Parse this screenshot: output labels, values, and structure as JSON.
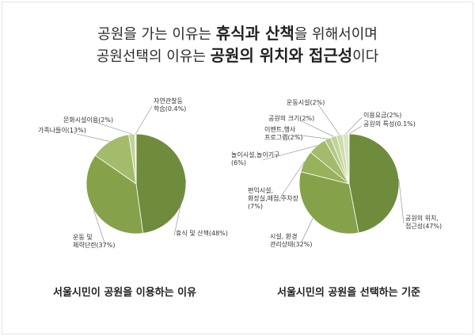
{
  "headline": {
    "line1_pre": "공원을 가는 이유는 ",
    "line1_bold1": "휴식과 산책",
    "line1_post": "을 위해서이며",
    "line2_pre": "공원선택의 이유는 ",
    "line2_bold": "공원의 위치와 접근성",
    "line2_post": "이다"
  },
  "colors": {
    "dark_olive": "#6e8c3c",
    "mid_olive": "#85a24a",
    "light_olive": "#a3bb6b",
    "pale_olive": "#c2d39a",
    "very_pale": "#dbe5c3",
    "lightest": "#ecf1e0"
  },
  "chart_data": [
    {
      "type": "pie",
      "title": "서울시민이 공원을 이용하는 이유",
      "slices": [
        {
          "label": "휴식 및 산책(48%)",
          "value": 48,
          "color": "#6e8c3c"
        },
        {
          "label": "운동 및\n체력단련(37%)",
          "value": 37,
          "color": "#85a24a"
        },
        {
          "label": "가족나들이(13%)",
          "value": 13,
          "color": "#a3bb6b"
        },
        {
          "label": "문화시설이용(2%)",
          "value": 2,
          "color": "#c2d39a"
        },
        {
          "label": "자연관찰등\n학습(0.4%)",
          "value": 0.4,
          "color": "#dbe5c3"
        }
      ]
    },
    {
      "type": "pie",
      "title": "서울시민의 공원을 선택하는 기준",
      "slices": [
        {
          "label": "공원의 위치,\n접근성(47%)",
          "value": 47,
          "color": "#6e8c3c"
        },
        {
          "label": "시설, 환경\n관리상태(32%)",
          "value": 32,
          "color": "#85a24a"
        },
        {
          "label": "편익시설,\n화장실,매점,주차장\n(7%)",
          "value": 7,
          "color": "#98b25c"
        },
        {
          "label": "놀이시설,놀이기구\n(6%)",
          "value": 6,
          "color": "#a3bb6b"
        },
        {
          "label": "이벤트,행사\n프로그램(2%)",
          "value": 2,
          "color": "#b3c783"
        },
        {
          "label": "공원의 크기(2%)",
          "value": 2,
          "color": "#c2d39a"
        },
        {
          "label": "운동시설(2%)",
          "value": 2,
          "color": "#cfdcac"
        },
        {
          "label": "이용요금(2%)",
          "value": 2,
          "color": "#dbe5c3"
        },
        {
          "label": "공원의 특성(0.1%)",
          "value": 0.1,
          "color": "#ecf1e0"
        }
      ]
    }
  ]
}
